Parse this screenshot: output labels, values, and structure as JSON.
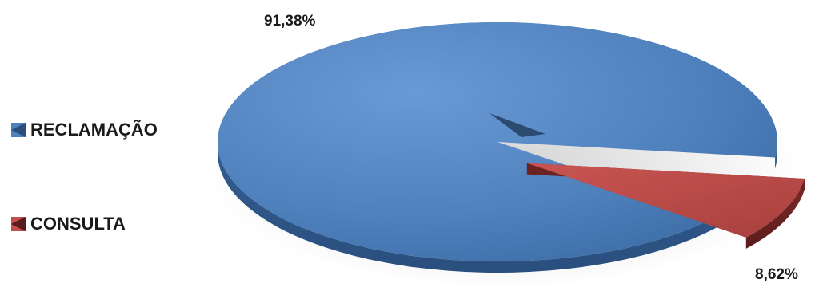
{
  "chart_data": {
    "type": "pie",
    "title": "",
    "style": "3d-exploded",
    "legend_position": "left",
    "categories": [
      "RECLAMAÇÃO",
      "CONSULTA"
    ],
    "values": [
      91.38,
      8.62
    ],
    "data_labels": [
      "91,38%",
      "8,62%"
    ],
    "colors": [
      "#4f81bd",
      "#c0504d"
    ]
  }
}
